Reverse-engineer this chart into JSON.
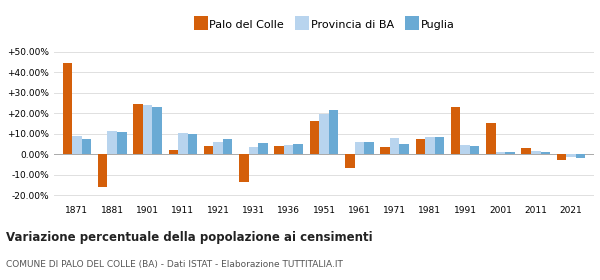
{
  "years": [
    1871,
    1881,
    1901,
    1911,
    1921,
    1931,
    1936,
    1951,
    1961,
    1971,
    1981,
    1991,
    2001,
    2011,
    2021
  ],
  "palo": [
    44.5,
    -16.0,
    24.5,
    2.0,
    4.0,
    -13.5,
    4.0,
    16.0,
    -6.5,
    3.5,
    7.5,
    23.0,
    15.0,
    3.0,
    -3.0
  ],
  "provincia": [
    9.0,
    11.5,
    24.0,
    10.5,
    6.0,
    3.5,
    4.5,
    19.5,
    6.0,
    8.0,
    8.5,
    4.5,
    1.0,
    1.5,
    -1.5
  ],
  "puglia": [
    7.5,
    11.0,
    23.0,
    10.0,
    7.5,
    5.5,
    5.0,
    21.5,
    6.0,
    5.0,
    8.5,
    4.0,
    1.0,
    1.0,
    -2.0
  ],
  "color_palo": "#d45f0a",
  "color_provincia": "#b8d4ee",
  "color_puglia": "#6aaad4",
  "title": "Variazione percentuale della popolazione ai censimenti",
  "subtitle": "COMUNE DI PALO DEL COLLE (BA) - Dati ISTAT - Elaborazione TUTTITALIA.IT",
  "legend_labels": [
    "Palo del Colle",
    "Provincia di BA",
    "Puglia"
  ],
  "ylim": [
    -23,
    56
  ],
  "yticks": [
    -20,
    -10,
    0,
    10,
    20,
    30,
    40,
    50
  ],
  "ytick_labels": [
    "-20.00%",
    "-10.00%",
    "0.00%",
    "+10.00%",
    "+20.00%",
    "+30.00%",
    "+40.00%",
    "+50.00%"
  ],
  "bg_color": "#ffffff",
  "grid_color": "#e0e0e0"
}
